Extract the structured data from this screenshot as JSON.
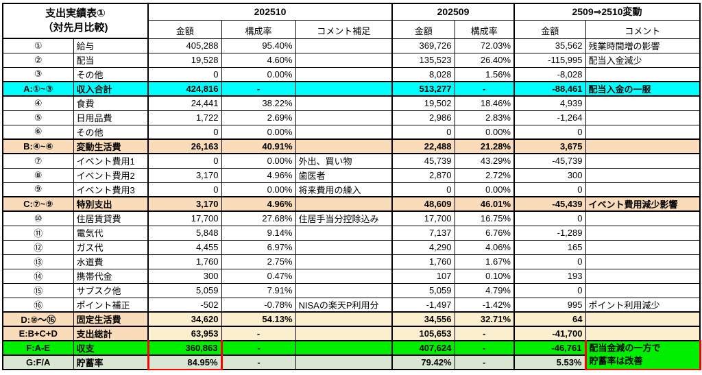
{
  "title_line1": "支出実績表①",
  "title_line2": "（対先月比較)",
  "header": {
    "month_current": "202510",
    "month_prev": "202509",
    "change_label": "2509⇒2510変動",
    "sub": [
      "金額",
      "構成率",
      "コメント補足",
      "金額",
      "構成率",
      "金額",
      "コメント"
    ]
  },
  "colors": {
    "cyan": "#00FFFF",
    "peach": "#FADCBB",
    "cream": "#FCEFCE",
    "green": "#00EE00",
    "lightgreen": "#D9E7D2",
    "red": "#FF0000"
  },
  "rows": [
    {
      "style": "normal",
      "cells": [
        "①",
        "給与",
        "405,288",
        "95.40%",
        "",
        "369,726",
        "72.03%",
        "35,562",
        "残業時間増の影響"
      ]
    },
    {
      "style": "normal",
      "cells": [
        "②",
        "配当",
        "19,528",
        "4.60%",
        "",
        "135,523",
        "26.40%",
        "-115,995",
        "配当入金減少"
      ]
    },
    {
      "style": "normal",
      "cells": [
        "③",
        "その他",
        "0",
        "0.00%",
        "",
        "8,028",
        "1.56%",
        "-8,028",
        ""
      ]
    },
    {
      "style": "cyan",
      "cells": [
        "A:①~③",
        "収入合計",
        "424,816",
        "-",
        "",
        "513,277",
        "-",
        "-88,461",
        "配当入金の一服"
      ]
    },
    {
      "style": "normal",
      "cells": [
        "④",
        "食費",
        "24,441",
        "38.22%",
        "",
        "19,502",
        "18.46%",
        "4,939",
        ""
      ]
    },
    {
      "style": "normal",
      "cells": [
        "⑤",
        "日用品費",
        "1,722",
        "2.69%",
        "",
        "2,986",
        "2.83%",
        "-1,264",
        ""
      ]
    },
    {
      "style": "normal",
      "cells": [
        "⑥",
        "その他",
        "0",
        "0.00%",
        "",
        "0",
        "0.00%",
        "0",
        ""
      ]
    },
    {
      "style": "peach",
      "cells": [
        "B:④~⑥",
        "変動生活費",
        "26,163",
        "40.91%",
        "",
        "22,488",
        "21.28%",
        "3,675",
        ""
      ]
    },
    {
      "style": "normal",
      "cells": [
        "⑦",
        "イベント費用1",
        "0",
        "0.00%",
        "外出、買い物",
        "45,739",
        "43.29%",
        "-45,739",
        ""
      ]
    },
    {
      "style": "normal",
      "cells": [
        "⑧",
        "イベント費用2",
        "3,170",
        "4.96%",
        "歯医者",
        "2,870",
        "2.72%",
        "300",
        ""
      ]
    },
    {
      "style": "normal",
      "cells": [
        "⑨",
        "イベント費用3",
        "0",
        "0.00%",
        "将来費用の繰入",
        "0",
        "0.00%",
        "0",
        ""
      ]
    },
    {
      "style": "peach",
      "cells": [
        "C:⑦~⑨",
        "特別支出",
        "3,170",
        "4.96%",
        "",
        "48,609",
        "46.01%",
        "-45,439",
        "イベント費用減少影響"
      ]
    },
    {
      "style": "normal",
      "cells": [
        "⑩",
        "住居賃貸費",
        "17,700",
        "27.68%",
        "住居手当分控除込み",
        "17,700",
        "16.75%",
        "0",
        ""
      ]
    },
    {
      "style": "normal",
      "cells": [
        "⑪",
        "電気代",
        "5,848",
        "9.14%",
        "",
        "7,137",
        "6.76%",
        "-1,289",
        ""
      ]
    },
    {
      "style": "normal",
      "cells": [
        "⑫",
        "ガス代",
        "4,455",
        "6.97%",
        "",
        "4,290",
        "4.06%",
        "165",
        ""
      ]
    },
    {
      "style": "normal",
      "cells": [
        "⑬",
        "水道費",
        "1,760",
        "2.75%",
        "",
        "1,760",
        "1.67%",
        "0",
        ""
      ]
    },
    {
      "style": "normal",
      "cells": [
        "⑭",
        "携帯代金",
        "300",
        "0.47%",
        "",
        "107",
        "0.10%",
        "193",
        ""
      ]
    },
    {
      "style": "normal",
      "cells": [
        "⑮",
        "サブスク他",
        "5,059",
        "7.91%",
        "",
        "5,059",
        "4.79%",
        "0",
        ""
      ]
    },
    {
      "style": "normal",
      "cells": [
        "⑯",
        "ポイント補正",
        "-502",
        "-0.78%",
        "NISAの楽天P利用分",
        "-1,497",
        "-1.42%",
        "995",
        "ポイント利用減少"
      ]
    },
    {
      "style": "mixed",
      "cells": [
        "D:⑩～⑯",
        "固定生活費",
        "34,620",
        "54.13%",
        "",
        "34,556",
        "32.71%",
        "64",
        ""
      ]
    },
    {
      "style": "mixed",
      "cells": [
        "E:B+C+D",
        "支出総計",
        "63,953",
        "-",
        "",
        "105,653",
        "-",
        "-41,700",
        ""
      ]
    },
    {
      "style": "green",
      "cells": [
        "F:A-E",
        "収支",
        "360,863",
        "-",
        "",
        "407,624",
        "-",
        "-46,761"
      ],
      "note_lines": [
        "配当金減の一方で",
        "貯蓄率は改善"
      ]
    },
    {
      "style": "lightgreen",
      "cells": [
        "G:F/A",
        "貯蓄率",
        "84.95%",
        "-",
        "",
        "79.42%",
        "-",
        "5.53%"
      ]
    }
  ]
}
